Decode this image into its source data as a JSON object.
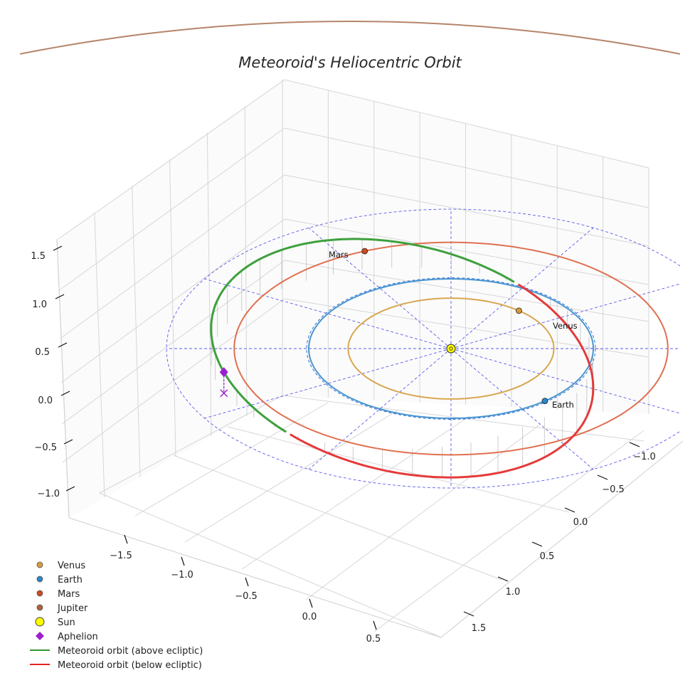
{
  "chart_data": {
    "type": "3d-orbit",
    "title": "Meteoroid's Heliocentric Orbit",
    "x_ticks": [
      "−1.5",
      "−1.0",
      "−0.5",
      "0.0",
      "0.5"
    ],
    "y_ticks": [
      "−1.0",
      "−0.5",
      "0.0",
      "0.5",
      "1.0",
      "1.5"
    ],
    "z_ticks": [
      "1.5",
      "1.0",
      "0.5",
      "0.0",
      "−0.5",
      "−1.0"
    ],
    "ecliptic_grid": {
      "radius_au": 2.0,
      "spokes": 12,
      "style": "dashed"
    },
    "planets": [
      {
        "name": "Venus",
        "a_au": 0.723,
        "color": "#d89a3c",
        "label": "Venus"
      },
      {
        "name": "Earth",
        "a_au": 1.0,
        "color": "#2c86c9",
        "label": "Earth"
      },
      {
        "name": "Mars",
        "a_au": 1.524,
        "color": "#cc4b1e",
        "label": "Mars"
      },
      {
        "name": "Jupiter",
        "a_au": 5.2,
        "color": "#b9876a",
        "label": ""
      }
    ],
    "sun": {
      "color": "#ffff00",
      "label": "Sun"
    },
    "meteoroid": {
      "perihelion_au": 0.98,
      "aphelion_au": 1.72,
      "above_color": "#3da03d",
      "below_color": "#e53a3a"
    },
    "aphelion_marker": {
      "color": "#9b1fd1",
      "label": "Aphelion"
    },
    "legend": [
      {
        "label": "Venus",
        "marker": "circle",
        "color": "#d89a3c"
      },
      {
        "label": "Earth",
        "marker": "circle",
        "color": "#2c86c9"
      },
      {
        "label": "Mars",
        "marker": "circle",
        "color": "#cc4b1e"
      },
      {
        "label": "Jupiter",
        "marker": "circle",
        "color": "#b0623a"
      },
      {
        "label": "Sun",
        "marker": "sun",
        "color": "#ffff00"
      },
      {
        "label": "Aphelion",
        "marker": "diamond",
        "color": "#9b1fd1"
      },
      {
        "label": "Meteoroid orbit (above ecliptic)",
        "marker": "line",
        "color": "#2e9a2e"
      },
      {
        "label": "Meteoroid orbit (below ecliptic)",
        "marker": "line",
        "color": "#e82222"
      }
    ]
  }
}
